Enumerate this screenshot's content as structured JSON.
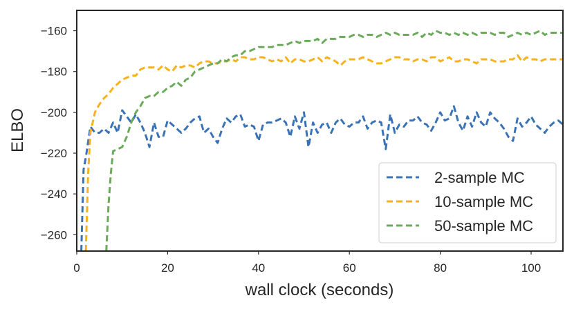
{
  "chart_data": {
    "type": "line",
    "title": "",
    "xlabel": "wall clock (seconds)",
    "ylabel": "ELBO",
    "xlim": [
      0,
      107
    ],
    "ylim": [
      -268,
      -150
    ],
    "xticks": [
      0,
      20,
      40,
      60,
      80,
      100
    ],
    "yticks": [
      -260,
      -240,
      -220,
      -200,
      -180,
      -160
    ],
    "grid": false,
    "legend_position": "bottom-right",
    "line_style": "dashed",
    "series": [
      {
        "name": "2-sample MC",
        "color": "#3a73b5",
        "x": [
          1,
          1.5,
          2,
          3,
          4,
          5,
          6,
          7,
          8,
          9,
          10,
          11,
          12,
          13,
          14,
          15,
          16,
          17,
          18,
          19,
          20,
          21,
          22,
          23,
          24,
          25,
          26,
          27,
          28,
          29,
          30,
          31,
          32,
          33,
          34,
          35,
          36,
          37,
          38,
          39,
          40,
          41,
          42,
          43,
          44,
          45,
          46,
          47,
          48,
          49,
          50,
          51,
          52,
          53,
          54,
          55,
          56,
          57,
          58,
          59,
          60,
          61,
          62,
          63,
          64,
          65,
          66,
          67,
          68,
          69,
          70,
          71,
          72,
          73,
          74,
          75,
          76,
          77,
          78,
          79,
          80,
          81,
          82,
          83,
          84,
          85,
          86,
          87,
          88,
          89,
          90,
          91,
          92,
          93,
          94,
          95,
          96,
          97,
          98,
          99,
          100,
          101,
          102,
          103,
          104,
          105,
          106,
          107
        ],
        "y": [
          -268,
          -228,
          -222,
          -207,
          -210,
          -210,
          -208,
          -210,
          -205,
          -210,
          -199,
          -202,
          -205,
          -201,
          -205,
          -210,
          -217,
          -205,
          -212,
          -212,
          -204,
          -206,
          -208,
          -210,
          -208,
          -205,
          -203,
          -202,
          -210,
          -208,
          -212,
          -215,
          -208,
          -203,
          -205,
          -202,
          -201,
          -207,
          -206,
          -207,
          -214,
          -206,
          -205,
          -205,
          -204,
          -203,
          -205,
          -212,
          -202,
          -208,
          -200,
          -217,
          -205,
          -210,
          -206,
          -205,
          -210,
          -205,
          -203,
          -206,
          -207,
          -205,
          -205,
          -202,
          -208,
          -205,
          -204,
          -205,
          -218,
          -201,
          -210,
          -206,
          -207,
          -204,
          -204,
          -202,
          -205,
          -206,
          -209,
          -205,
          -200,
          -204,
          -203,
          -197,
          -205,
          -209,
          -202,
          -207,
          -200,
          -205,
          -207,
          -200,
          -203,
          -205,
          -208,
          -212,
          -214,
          -203,
          -207,
          -205,
          -202,
          -206,
          -208,
          -210,
          -207,
          -205,
          -204,
          -206
        ]
      },
      {
        "name": "10-sample MC",
        "color": "#f6b21b",
        "x": [
          2,
          2.5,
          3,
          4,
          5,
          6,
          7,
          8,
          9,
          10,
          11,
          12,
          13,
          14,
          15,
          16,
          17,
          18,
          19,
          20,
          21,
          22,
          23,
          24,
          25,
          26,
          27,
          28,
          29,
          30,
          31,
          32,
          33,
          34,
          35,
          36,
          37,
          38,
          39,
          40,
          41,
          42,
          43,
          44,
          45,
          46,
          47,
          48,
          49,
          50,
          51,
          52,
          53,
          54,
          55,
          56,
          57,
          58,
          59,
          60,
          61,
          62,
          63,
          64,
          65,
          66,
          67,
          68,
          69,
          70,
          71,
          72,
          73,
          74,
          75,
          76,
          77,
          78,
          79,
          80,
          81,
          82,
          83,
          84,
          85,
          86,
          87,
          88,
          89,
          90,
          91,
          92,
          93,
          94,
          95,
          96,
          97,
          98,
          99,
          100,
          101,
          102,
          103,
          104,
          105,
          106,
          107
        ],
        "y": [
          -268,
          -230,
          -210,
          -200,
          -196,
          -193,
          -191,
          -188,
          -186,
          -184,
          -183,
          -182,
          -182,
          -179,
          -178,
          -178,
          -178,
          -179,
          -177,
          -179,
          -180,
          -177,
          -178,
          -177,
          -177,
          -178,
          -176,
          -175,
          -175,
          -176,
          -176,
          -175,
          -175,
          -174,
          -175,
          -173,
          -173,
          -174,
          -174,
          -173,
          -173,
          -174,
          -175,
          -174,
          -175,
          -173,
          -176,
          -174,
          -174,
          -175,
          -175,
          -174,
          -173,
          -175,
          -173,
          -174,
          -175,
          -177,
          -175,
          -174,
          -174,
          -174,
          -173,
          -174,
          -175,
          -176,
          -176,
          -175,
          -174,
          -173,
          -173,
          -174,
          -174,
          -175,
          -174,
          -174,
          -175,
          -173,
          -173,
          -175,
          -174,
          -173,
          -175,
          -175,
          -174,
          -174,
          -175,
          -176,
          -174,
          -174,
          -174,
          -175,
          -175,
          -175,
          -174,
          -174,
          -172,
          -175,
          -173,
          -174,
          -174,
          -175,
          -174,
          -174,
          -174,
          -174,
          -174
        ]
      },
      {
        "name": "50-sample MC",
        "color": "#6aaa5a",
        "x": [
          6.5,
          7,
          7.5,
          8,
          9,
          10,
          11,
          12,
          13,
          14,
          15,
          16,
          17,
          18,
          19,
          20,
          21,
          22,
          23,
          24,
          25,
          26,
          27,
          28,
          29,
          30,
          31,
          32,
          33,
          34,
          35,
          36,
          37,
          38,
          39,
          40,
          41,
          42,
          43,
          44,
          45,
          46,
          47,
          48,
          49,
          50,
          51,
          52,
          53,
          54,
          55,
          56,
          57,
          58,
          59,
          60,
          61,
          62,
          63,
          64,
          65,
          66,
          67,
          68,
          69,
          70,
          71,
          72,
          73,
          74,
          75,
          76,
          77,
          78,
          79,
          80,
          81,
          82,
          83,
          84,
          85,
          86,
          87,
          88,
          89,
          90,
          91,
          92,
          93,
          94,
          95,
          96,
          97,
          98,
          99,
          100,
          101,
          102,
          103,
          104,
          105,
          106,
          107
        ],
        "y": [
          -268,
          -245,
          -230,
          -219,
          -218,
          -217,
          -212,
          -205,
          -200,
          -197,
          -193,
          -192,
          -192,
          -190,
          -190,
          -188,
          -187,
          -185,
          -187,
          -184,
          -183,
          -180,
          -179,
          -178,
          -177,
          -176,
          -176,
          -174,
          -175,
          -173,
          -172,
          -172,
          -170,
          -170,
          -169,
          -168,
          -168,
          -168,
          -168,
          -167,
          -167,
          -167,
          -166,
          -165,
          -166,
          -165,
          -165,
          -165,
          -164,
          -166,
          -164,
          -164,
          -164,
          -163,
          -163,
          -163,
          -162,
          -162,
          -163,
          -162,
          -162,
          -163,
          -162,
          -161,
          -162,
          -161,
          -162,
          -162,
          -162,
          -162,
          -161,
          -163,
          -161,
          -162,
          -160,
          -161,
          -161,
          -162,
          -161,
          -162,
          -161,
          -162,
          -161,
          -162,
          -161,
          -161,
          -161,
          -162,
          -161,
          -161,
          -163,
          -162,
          -161,
          -162,
          -161,
          -162,
          -161,
          -160,
          -162,
          -161,
          -161,
          -161,
          -161
        ]
      }
    ]
  }
}
